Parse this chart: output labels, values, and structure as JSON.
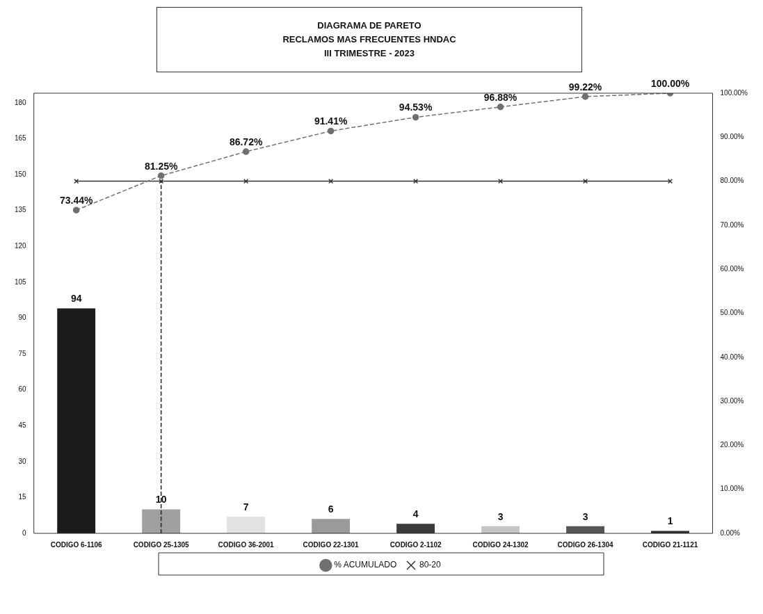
{
  "chart_data": {
    "type": "bar",
    "title": "DIAGRAMA DE PARETO",
    "subtitle": "RECLAMOS  MAS FRECUENTES HNDAC\nIII TRIMESTRE - 2023",
    "categories": [
      "CODIGO 6-1106",
      "CODIGO 25-1305",
      "CODIGO 36-2001",
      "CODIGO 22-1301",
      "CODIGO 2-1102",
      "CODIGO 24-1302",
      "CODIGO 26-1304",
      "CODIGO 21-1121"
    ],
    "series": [
      {
        "colors": [
          "#1c1c1c",
          "#a0a0a0",
          "#e2e2e2",
          "#9a9a9a",
          "#3a3a3a",
          "#c4c4c4",
          "#555555",
          "#303030"
        ],
        "color": "#1c1c1c",
        "values": [
          94,
          10,
          7,
          6,
          4,
          3,
          3,
          1
        ],
        "value_labels": [
          "94",
          "10",
          "7",
          "6",
          "4",
          "3",
          "3",
          "1"
        ]
      },
      {
        "type": "line",
        "name": "% ACUMULADO",
        "axis": "y2",
        "color": "#707070",
        "marker": "circle",
        "line_style": "dashed",
        "values": [
          73.44,
          81.25,
          86.72,
          91.41,
          94.53,
          96.88,
          99.22,
          100
        ],
        "value_labels": [
          "73.44%",
          "81.25%",
          "86.72%",
          "91.41%",
          "94.53%",
          "96.88%",
          "99.22%",
          "100.00%"
        ]
      },
      {
        "type": "line",
        "name": "80-20",
        "axis": "y2",
        "color": "#333333",
        "marker": "cross",
        "line_style": "solid",
        "values": [
          80,
          80,
          80,
          80,
          80,
          80,
          80,
          80
        ]
      }
    ],
    "ylim": [
      0,
      184
    ],
    "yticks": [
      0,
      15,
      30,
      45,
      60,
      75,
      90,
      105,
      120,
      135,
      150,
      165,
      180
    ],
    "y2lim": [
      0,
      100
    ],
    "y2ticks": [
      {
        "value": 0,
        "label": "0.00%"
      },
      {
        "value": 10,
        "label": "10.00%"
      },
      {
        "value": 20,
        "label": "20.00%"
      },
      {
        "value": 30,
        "label": "30.00%"
      },
      {
        "value": 40,
        "label": "40.00%"
      },
      {
        "value": 50,
        "label": "50.00%"
      },
      {
        "value": 60,
        "label": "60.00%"
      },
      {
        "value": 70,
        "label": "70.00%"
      },
      {
        "value": 80,
        "label": "80.00%"
      },
      {
        "value": 90,
        "label": "90.00%"
      },
      {
        "value": 100,
        "label": "100.00%"
      }
    ],
    "ref_lines": [
      {
        "axis": "x",
        "value": "CODIGO 25-1305",
        "line_style": "dashed",
        "color": "#222222"
      }
    ],
    "grid": false,
    "legend": "bottom"
  }
}
